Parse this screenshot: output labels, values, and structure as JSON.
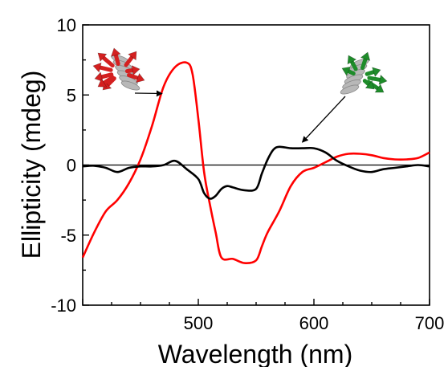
{
  "chart_data": {
    "type": "line",
    "title": "",
    "xlabel": "Wavelength (nm)",
    "ylabel": "Ellipticity (mdeg)",
    "xlim": [
      400,
      700
    ],
    "ylim": [
      -10,
      10
    ],
    "xticks": [
      500,
      600,
      700
    ],
    "yticks": [
      10,
      5,
      0,
      -5,
      -10
    ],
    "grid": false,
    "legend": "none",
    "zero_line": true,
    "series": [
      {
        "color": "#ff0000",
        "x": [
          400,
          410,
          420,
          430,
          440,
          450,
          460,
          470,
          480,
          490,
          495,
          500,
          505,
          510,
          515,
          520,
          530,
          540,
          550,
          555,
          560,
          570,
          580,
          590,
          600,
          610,
          620,
          630,
          640,
          650,
          660,
          670,
          680,
          690,
          700
        ],
        "y": [
          -6.6,
          -4.8,
          -3.3,
          -2.5,
          -1.3,
          0.4,
          2.8,
          5.6,
          7.0,
          7.3,
          6.5,
          3.3,
          -0.5,
          -2.8,
          -4.8,
          -6.6,
          -6.7,
          -7.0,
          -6.8,
          -5.8,
          -4.8,
          -3.3,
          -1.5,
          -0.5,
          -0.2,
          0.2,
          0.6,
          0.8,
          0.8,
          0.7,
          0.5,
          0.4,
          0.4,
          0.5,
          0.9
        ]
      },
      {
        "color": "#000000",
        "x": [
          400,
          410,
          420,
          430,
          440,
          450,
          460,
          470,
          480,
          490,
          500,
          505,
          510,
          515,
          520,
          525,
          530,
          540,
          550,
          555,
          560,
          565,
          570,
          580,
          590,
          600,
          610,
          620,
          630,
          640,
          650,
          660,
          670,
          680,
          690,
          700
        ],
        "y": [
          -0.1,
          -0.05,
          -0.2,
          -0.5,
          -0.2,
          -0.1,
          -0.1,
          0.0,
          0.3,
          -0.3,
          -1.0,
          -2.0,
          -2.4,
          -2.2,
          -1.7,
          -1.5,
          -1.6,
          -1.8,
          -1.7,
          -0.6,
          0.4,
          1.1,
          1.3,
          1.2,
          1.2,
          1.2,
          0.9,
          0.3,
          -0.1,
          -0.4,
          -0.5,
          -0.3,
          -0.2,
          -0.1,
          0.0,
          -0.1
        ]
      }
    ]
  },
  "insets": [
    {
      "name": "red-helix",
      "color": "#d42020",
      "arrow_to": [
        470,
        5.1
      ]
    },
    {
      "name": "green-helix",
      "color": "#1e8c2a",
      "arrow_to": [
        590,
        1.4
      ]
    }
  ],
  "colors": {
    "axis": "#000000",
    "zero_line": "#000000"
  }
}
